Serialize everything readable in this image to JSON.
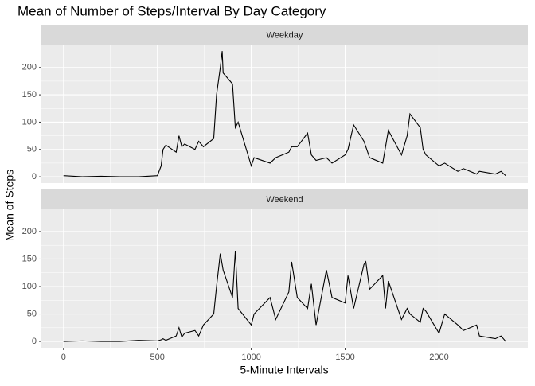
{
  "chart_data": {
    "type": "line",
    "title": "Mean of Number of Steps/Interval By Day Category",
    "x_label": "5-Minute Intervals",
    "y_label": "Mean of Steps",
    "facet": true,
    "grid": true,
    "x": [
      0,
      100,
      200,
      300,
      400,
      500,
      520,
      530,
      545,
      600,
      615,
      630,
      645,
      700,
      720,
      745,
      800,
      815,
      835,
      845,
      850,
      900,
      915,
      930,
      1000,
      1015,
      1100,
      1130,
      1200,
      1215,
      1245,
      1300,
      1320,
      1345,
      1400,
      1430,
      1500,
      1515,
      1545,
      1600,
      1610,
      1630,
      1700,
      1715,
      1730,
      1800,
      1830,
      1845,
      1900,
      1915,
      1930,
      2000,
      2030,
      2100,
      2130,
      2200,
      2215,
      2300,
      2330,
      2355
    ],
    "series": [
      {
        "name": "Weekday",
        "color": "#000000",
        "values": [
          2,
          0,
          1,
          0,
          0,
          2,
          20,
          50,
          58,
          45,
          75,
          55,
          60,
          50,
          65,
          55,
          70,
          150,
          200,
          230,
          190,
          170,
          90,
          100,
          20,
          35,
          25,
          35,
          45,
          55,
          55,
          80,
          40,
          30,
          35,
          25,
          40,
          50,
          95,
          65,
          55,
          35,
          25,
          55,
          85,
          40,
          75,
          115,
          90,
          50,
          40,
          20,
          25,
          10,
          15,
          5,
          10,
          5,
          10,
          2
        ]
      },
      {
        "name": "Weekend",
        "color": "#000000",
        "values": [
          0,
          1,
          0,
          0,
          2,
          1,
          3,
          5,
          2,
          10,
          25,
          8,
          15,
          20,
          10,
          30,
          50,
          100,
          160,
          140,
          130,
          80,
          165,
          60,
          30,
          50,
          80,
          40,
          90,
          145,
          80,
          60,
          105,
          30,
          130,
          80,
          70,
          120,
          60,
          140,
          145,
          95,
          120,
          60,
          110,
          40,
          60,
          50,
          35,
          60,
          55,
          15,
          50,
          30,
          20,
          30,
          10,
          5,
          10,
          0
        ]
      }
    ],
    "xlim": [
      -117.75,
      2472.75
    ],
    "xticks": [
      0,
      500,
      1000,
      1500,
      2000
    ],
    "ylim": [
      -11.5,
      241.9
    ],
    "yticks": [
      0,
      50,
      100,
      150,
      200
    ]
  }
}
